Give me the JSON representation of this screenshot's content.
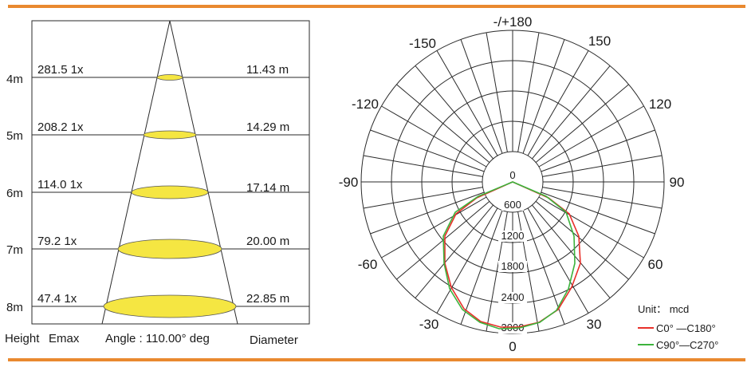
{
  "beam_diagram": {
    "rows": [
      {
        "height": "4m",
        "emax": "281.5 1x",
        "diameter": "11.43 m"
      },
      {
        "height": "5m",
        "emax": "208.2 1x",
        "diameter": "14.29 m"
      },
      {
        "height": "6m",
        "emax": "114.0 1x",
        "diameter": "17.14 m"
      },
      {
        "height": "7m",
        "emax": "79.2 1x",
        "diameter": "20.00 m"
      },
      {
        "height": "8m",
        "emax": "47.4 1x",
        "diameter": "22.85 m"
      }
    ],
    "footer": {
      "height_label": "Height",
      "emax_label": "Emax",
      "angle_label": "Angle : 110.00° deg",
      "diameter_label": "Diameter"
    },
    "spot_color": "#f5e642"
  },
  "polar_diagram": {
    "angle_labels": {
      "top": "-/+180",
      "upper_left": "-150",
      "upper_right": "150",
      "left_upper": "-120",
      "right_upper": "120",
      "left": "-90",
      "right": "90",
      "lower_left": "-60",
      "lower_right": "60",
      "bottom_left": "-30",
      "bottom_right": "30",
      "bottom": "0"
    },
    "radial_labels": [
      "0",
      "600",
      "1200",
      "1800",
      "2400",
      "3000"
    ],
    "unit_label": "Unit： mcd",
    "legend": [
      {
        "label": "C0° —C180°",
        "color": "#e8302a"
      },
      {
        "label": "C90°—C270°",
        "color": "#3cb33c"
      }
    ]
  },
  "accent_color": "#e9892f"
}
